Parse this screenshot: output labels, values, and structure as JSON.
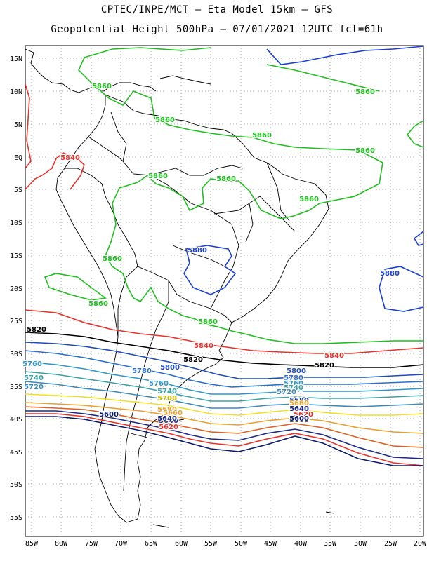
{
  "title_line1": "CPTEC/INPE/MCT –  Eta Model 15km – GFS",
  "title_line2": "Geopotential Height 500hPa – 07/01/2021 12UTC fct=61h",
  "lat_labels": [
    "15N",
    "10N",
    "5N",
    "EQ",
    "5S",
    "10S",
    "15S",
    "20S",
    "25S",
    "30S",
    "35S",
    "40S",
    "45S",
    "50S",
    "55S"
  ],
  "lon_labels": [
    "85W",
    "80W",
    "75W",
    "70W",
    "65W",
    "60W",
    "55W",
    "50W",
    "45W",
    "40W",
    "35W",
    "30W",
    "25W",
    "20W"
  ],
  "map": {
    "lat_range": [
      17.5,
      -58.5
    ],
    "lon_range": [
      -86,
      -19.5
    ],
    "grid": "dotted"
  },
  "contours": [
    {
      "value": "5880",
      "color": "#1a3fd6"
    },
    {
      "value": "5860",
      "color": "#1fbf1f"
    },
    {
      "value": "5840",
      "color": "#e8322a"
    },
    {
      "value": "5820",
      "color": "#000000"
    },
    {
      "value": "5800",
      "color": "#1f4ab8"
    },
    {
      "value": "5780",
      "color": "#2a6fd0"
    },
    {
      "value": "5760",
      "color": "#2f96c8"
    },
    {
      "value": "5740",
      "color": "#3aa0a8"
    },
    {
      "value": "5720",
      "color": "#3c88b8"
    },
    {
      "value": "5700",
      "color": "#f0e020"
    },
    {
      "value": "5680",
      "color": "#e8a028"
    },
    {
      "value": "5660",
      "color": "#e06020"
    },
    {
      "value": "5640",
      "color": "#1a2a8a"
    },
    {
      "value": "5620",
      "color": "#e8322a"
    },
    {
      "value": "5600",
      "color": "#0a1a6a"
    }
  ],
  "contour_labels": [
    {
      "text": "5860",
      "color": "#1fbf1f"
    },
    {
      "text": "5860",
      "color": "#1fbf1f"
    },
    {
      "text": "5860",
      "color": "#1fbf1f"
    },
    {
      "text": "5860",
      "color": "#1fbf1f"
    },
    {
      "text": "5860",
      "color": "#1fbf1f"
    },
    {
      "text": "5860",
      "color": "#1fbf1f"
    },
    {
      "text": "5860",
      "color": "#1fbf1f"
    },
    {
      "text": "5860",
      "color": "#1fbf1f"
    },
    {
      "text": "5860",
      "color": "#1fbf1f"
    },
    {
      "text": "5860",
      "color": "#1fbf1f"
    },
    {
      "text": "5860",
      "color": "#1fbf1f"
    },
    {
      "text": "5840",
      "color": "#e8322a"
    },
    {
      "text": "5880",
      "color": "#1a3fd6"
    },
    {
      "text": "5880",
      "color": "#1a3fd6"
    },
    {
      "text": "5820",
      "color": "#000000"
    },
    {
      "text": "5840",
      "color": "#e8322a"
    },
    {
      "text": "5840",
      "color": "#e8322a"
    },
    {
      "text": "5820",
      "color": "#000000"
    },
    {
      "text": "5820",
      "color": "#000000"
    },
    {
      "text": "5760",
      "color": "#2f96c8"
    },
    {
      "text": "5780",
      "color": "#2a6fd0"
    },
    {
      "text": "5800",
      "color": "#1f4ab8"
    },
    {
      "text": "5800",
      "color": "#1f4ab8"
    },
    {
      "text": "5780",
      "color": "#2a6fd0"
    },
    {
      "text": "5760",
      "color": "#2f96c8"
    },
    {
      "text": "5740",
      "color": "#3aa0a8"
    },
    {
      "text": "5740",
      "color": "#3aa0a8"
    },
    {
      "text": "5720",
      "color": "#3c88b8"
    },
    {
      "text": "5720",
      "color": "#3c88b8"
    },
    {
      "text": "5760",
      "color": "#2f96c8"
    },
    {
      "text": "5760",
      "color": "#2f96c8"
    },
    {
      "text": "5740",
      "color": "#3aa0a8"
    },
    {
      "text": "5720",
      "color": "#3c88b8"
    },
    {
      "text": "5700",
      "color": "#c8b800"
    },
    {
      "text": "5680",
      "color": "#e8a028"
    },
    {
      "text": "5680",
      "color": "#1a2a8a"
    },
    {
      "text": "5680",
      "color": "#e8a028"
    },
    {
      "text": "5660",
      "color": "#e8a028"
    },
    {
      "text": "5640",
      "color": "#1a2a8a"
    },
    {
      "text": "5620",
      "color": "#e8322a"
    },
    {
      "text": "5600",
      "color": "#0a1a6a"
    },
    {
      "text": "5600",
      "color": "#0a1a6a"
    },
    {
      "text": "5640",
      "color": "#1a2a8a"
    },
    {
      "text": "5620",
      "color": "#e8322a"
    },
    {
      "text": "5600",
      "color": "#0a1a6a"
    },
    {
      "text": "5640",
      "color": "#1a2a8a"
    },
    {
      "text": "5720",
      "color": "#3c88b8"
    }
  ]
}
